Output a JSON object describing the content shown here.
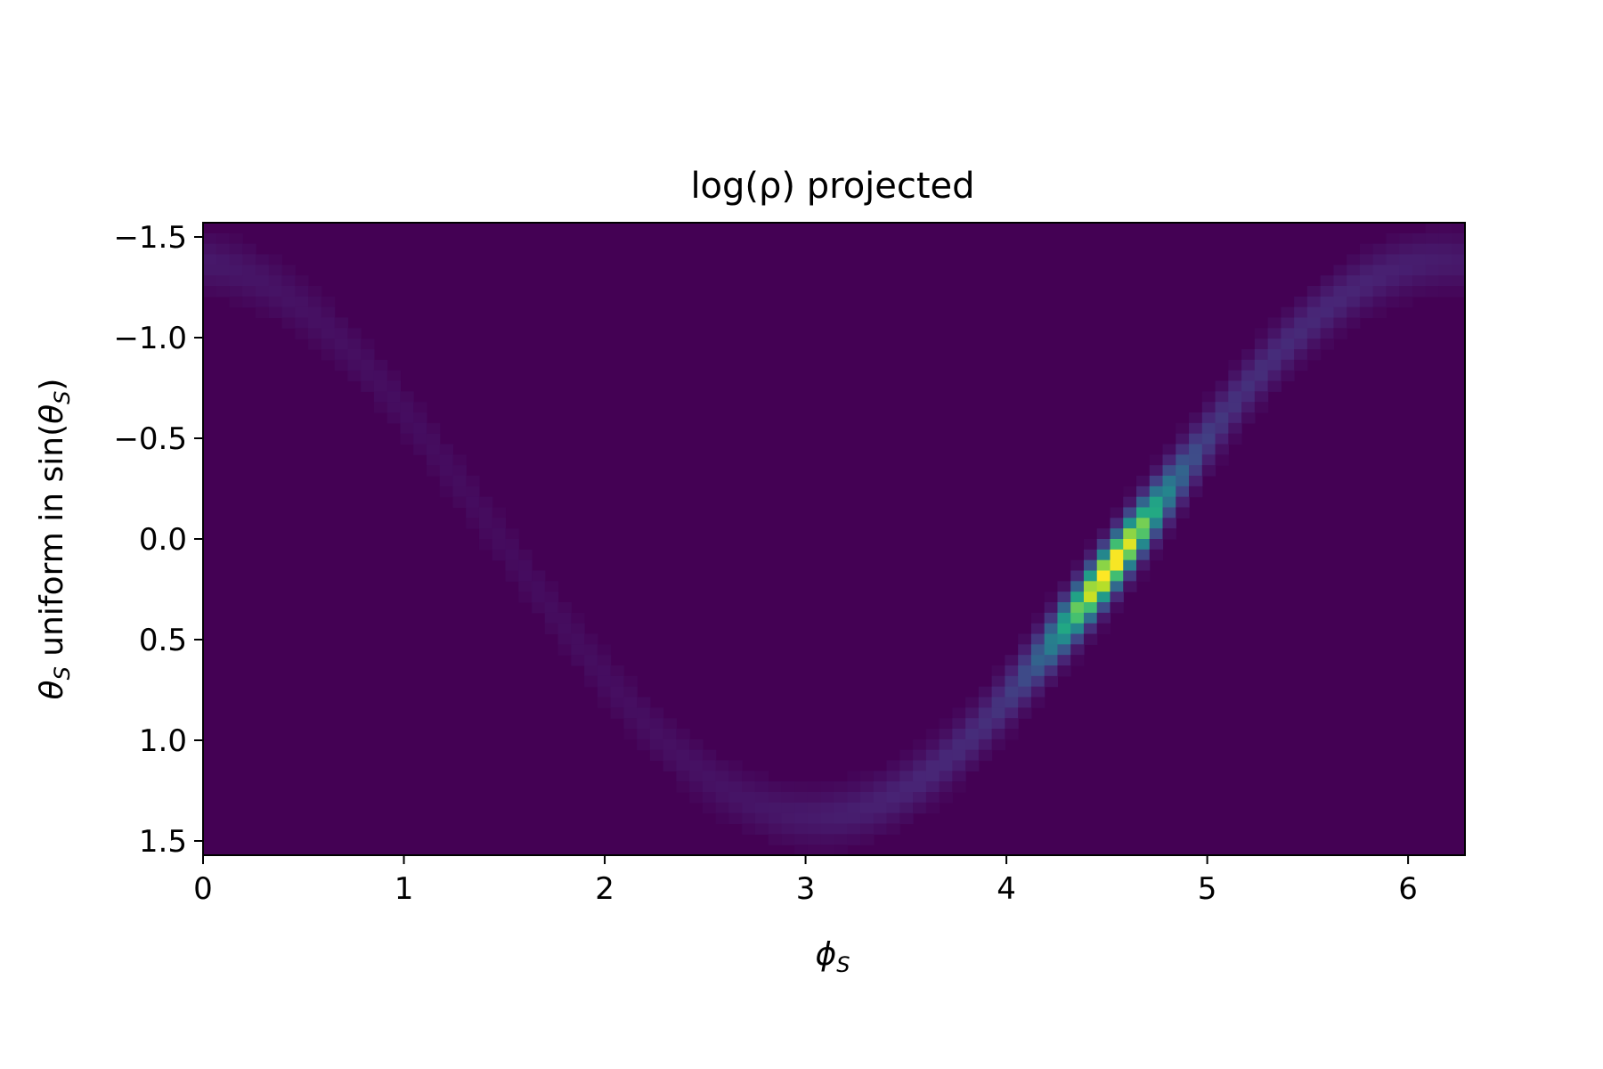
{
  "chart_data": {
    "type": "heatmap",
    "title": "log(ρ) projected",
    "xlabel": {
      "main": "ϕ",
      "sub": "S"
    },
    "ylabel": {
      "var": "θ",
      "sub": "S",
      "text": " uniform in sin(",
      "var2": "θ",
      "sub2": "S",
      "close": ")"
    },
    "xlim": [
      0,
      6.2832
    ],
    "ylim": [
      1.5708,
      -1.5708
    ],
    "y_inverted": true,
    "x_ticks": [
      0,
      1,
      2,
      3,
      4,
      5,
      6
    ],
    "x_tick_labels": [
      "0",
      "1",
      "2",
      "3",
      "4",
      "5",
      "6"
    ],
    "y_ticks": [
      -1.5,
      -1.0,
      -0.5,
      0.0,
      0.5,
      1.0,
      1.5
    ],
    "y_tick_labels": [
      "−1.5",
      "−1.0",
      "−0.5",
      "0.0",
      "0.5",
      "1.0",
      "1.5"
    ],
    "colormap": "viridis",
    "background_color": "#440154",
    "grid": {
      "nx": 96,
      "ny": 60
    },
    "band": {
      "description_of_shape": "sinusoidal ridge theta = -asin(sin(phi - phi_peak)) (approx), brightest near the node",
      "phi_node": 4.62,
      "theta_peak": 0.2,
      "phi_of_peak": 4.62,
      "amplitude_theta": 1.38,
      "phi_period": 6.2832
    },
    "peak_value": 1.0
  }
}
